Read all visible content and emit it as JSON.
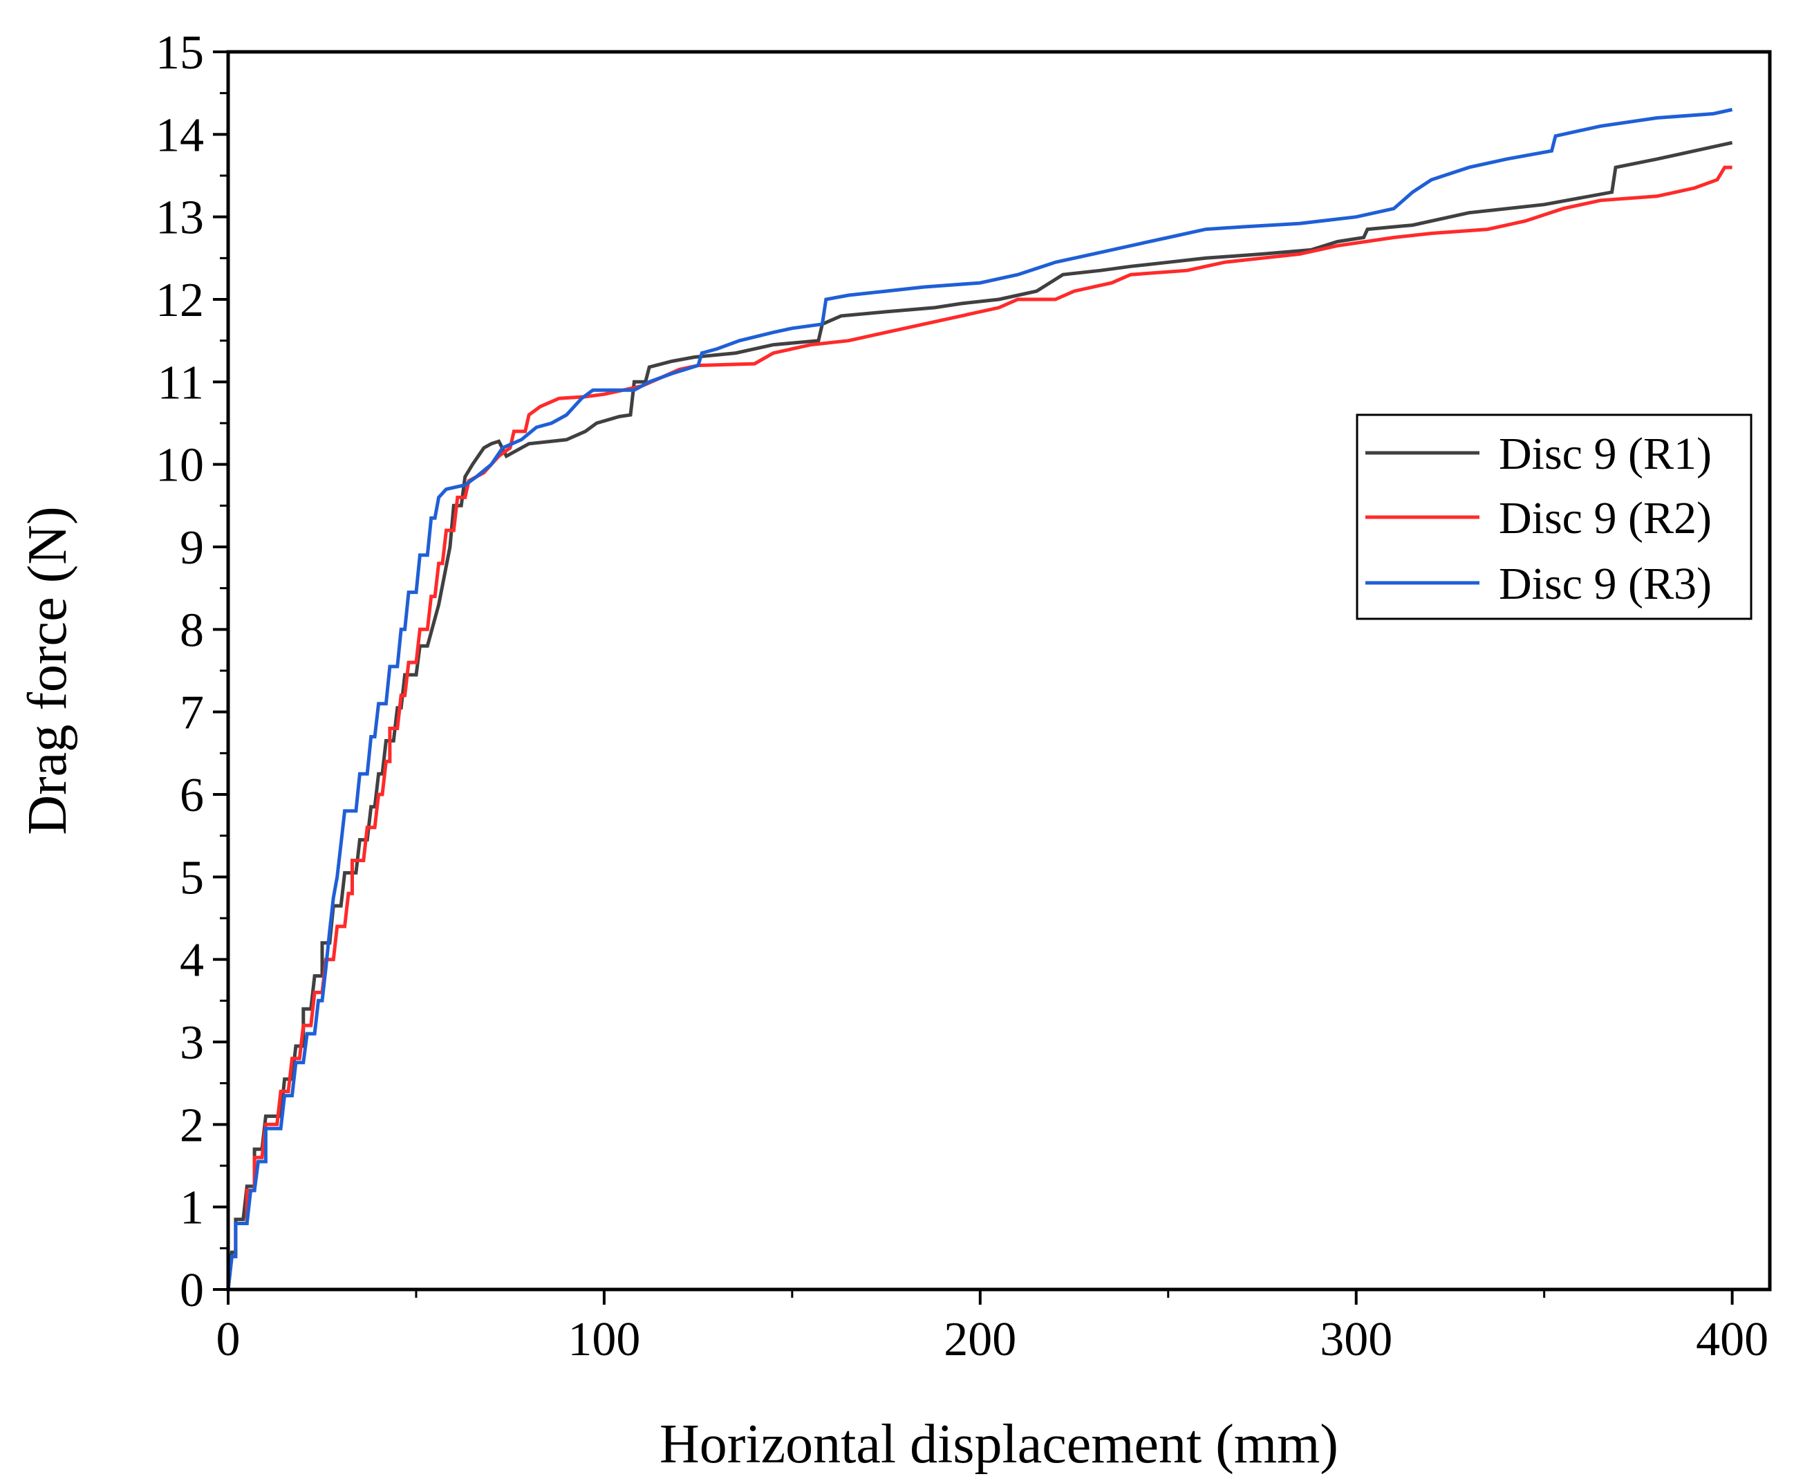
{
  "chart_data": {
    "type": "line",
    "title": "",
    "xlabel": "Horizontal displacement (mm)",
    "ylabel": "Drag force (N)",
    "xlim": [
      0,
      410
    ],
    "ylim": [
      0,
      15
    ],
    "xticks": [
      0,
      100,
      200,
      300,
      400
    ],
    "xtick_labels": [
      "0",
      "100",
      "200",
      "300",
      "400"
    ],
    "yticks": [
      0,
      1,
      2,
      3,
      4,
      5,
      6,
      7,
      8,
      9,
      10,
      11,
      12,
      13,
      14,
      15
    ],
    "ytick_labels": [
      "0",
      "1",
      "2",
      "3",
      "4",
      "5",
      "6",
      "7",
      "8",
      "9",
      "10",
      "11",
      "12",
      "13",
      "14",
      "15"
    ],
    "grid": false,
    "legend_position": "right-middle",
    "series": [
      {
        "name": "Disc 9 (R1)",
        "color": "#404040",
        "points": [
          [
            0,
            0
          ],
          [
            1,
            0.45
          ],
          [
            2,
            0.45
          ],
          [
            2,
            0.85
          ],
          [
            4,
            0.85
          ],
          [
            5,
            1.25
          ],
          [
            7,
            1.25
          ],
          [
            7,
            1.7
          ],
          [
            9,
            1.7
          ],
          [
            10,
            2.1
          ],
          [
            14,
            2.1
          ],
          [
            15,
            2.55
          ],
          [
            17,
            2.55
          ],
          [
            18,
            2.95
          ],
          [
            20,
            2.95
          ],
          [
            20,
            3.4
          ],
          [
            22,
            3.4
          ],
          [
            23,
            3.8
          ],
          [
            25,
            3.8
          ],
          [
            25,
            4.2
          ],
          [
            27,
            4.2
          ],
          [
            28,
            4.65
          ],
          [
            30,
            4.65
          ],
          [
            31,
            5.05
          ],
          [
            34,
            5.05
          ],
          [
            35,
            5.45
          ],
          [
            37,
            5.45
          ],
          [
            38,
            5.85
          ],
          [
            39,
            5.85
          ],
          [
            40,
            6.25
          ],
          [
            41,
            6.25
          ],
          [
            42,
            6.65
          ],
          [
            44,
            6.65
          ],
          [
            45,
            7.05
          ],
          [
            46,
            7.05
          ],
          [
            47,
            7.45
          ],
          [
            50,
            7.45
          ],
          [
            51,
            7.8
          ],
          [
            53,
            7.8
          ],
          [
            56,
            8.3
          ],
          [
            59,
            9.0
          ],
          [
            60,
            9.5
          ],
          [
            62,
            9.5
          ],
          [
            63,
            9.85
          ],
          [
            65,
            10.0
          ],
          [
            68,
            10.2
          ],
          [
            70,
            10.25
          ],
          [
            72,
            10.28
          ],
          [
            74,
            10.1
          ],
          [
            80,
            10.25
          ],
          [
            90,
            10.3
          ],
          [
            95,
            10.4
          ],
          [
            98,
            10.5
          ],
          [
            104,
            10.58
          ],
          [
            107,
            10.6
          ],
          [
            108,
            11.0
          ],
          [
            111,
            11.0
          ],
          [
            112,
            11.18
          ],
          [
            118,
            11.25
          ],
          [
            124,
            11.3
          ],
          [
            135,
            11.35
          ],
          [
            145,
            11.45
          ],
          [
            157,
            11.5
          ],
          [
            158,
            11.7
          ],
          [
            163,
            11.8
          ],
          [
            175,
            11.85
          ],
          [
            188,
            11.9
          ],
          [
            195,
            11.95
          ],
          [
            205,
            12.0
          ],
          [
            215,
            12.1
          ],
          [
            222,
            12.3
          ],
          [
            232,
            12.35
          ],
          [
            240,
            12.4
          ],
          [
            250,
            12.45
          ],
          [
            260,
            12.5
          ],
          [
            275,
            12.55
          ],
          [
            288,
            12.6
          ],
          [
            295,
            12.7
          ],
          [
            302,
            12.75
          ],
          [
            303,
            12.85
          ],
          [
            315,
            12.9
          ],
          [
            330,
            13.05
          ],
          [
            350,
            13.15
          ],
          [
            368,
            13.3
          ],
          [
            369,
            13.6
          ],
          [
            380,
            13.7
          ],
          [
            390,
            13.8
          ],
          [
            400,
            13.9
          ]
        ]
      },
      {
        "name": "Disc 9 (R2)",
        "color": "#ff2a2a",
        "points": [
          [
            0,
            0
          ],
          [
            1,
            0.4
          ],
          [
            2,
            0.4
          ],
          [
            2,
            0.8
          ],
          [
            5,
            0.8
          ],
          [
            5,
            1.2
          ],
          [
            7,
            1.2
          ],
          [
            7,
            1.6
          ],
          [
            9,
            1.6
          ],
          [
            10,
            2.0
          ],
          [
            13,
            2.0
          ],
          [
            14,
            2.4
          ],
          [
            16,
            2.4
          ],
          [
            17,
            2.8
          ],
          [
            19,
            2.8
          ],
          [
            20,
            3.2
          ],
          [
            22,
            3.2
          ],
          [
            23,
            3.6
          ],
          [
            25,
            3.6
          ],
          [
            26,
            4.0
          ],
          [
            28,
            4.0
          ],
          [
            29,
            4.4
          ],
          [
            31,
            4.4
          ],
          [
            32,
            4.8
          ],
          [
            33,
            4.8
          ],
          [
            33,
            5.2
          ],
          [
            36,
            5.2
          ],
          [
            37,
            5.6
          ],
          [
            39,
            5.6
          ],
          [
            40,
            6.0
          ],
          [
            41,
            6.0
          ],
          [
            42,
            6.4
          ],
          [
            43,
            6.4
          ],
          [
            43,
            6.8
          ],
          [
            45,
            6.8
          ],
          [
            46,
            7.2
          ],
          [
            47,
            7.2
          ],
          [
            48,
            7.6
          ],
          [
            50,
            7.6
          ],
          [
            51,
            8.0
          ],
          [
            53,
            8.0
          ],
          [
            54,
            8.4
          ],
          [
            55,
            8.4
          ],
          [
            56,
            8.8
          ],
          [
            57,
            8.8
          ],
          [
            58,
            9.2
          ],
          [
            60,
            9.2
          ],
          [
            61,
            9.6
          ],
          [
            63,
            9.6
          ],
          [
            64,
            9.8
          ],
          [
            66,
            9.85
          ],
          [
            68,
            9.9
          ],
          [
            70,
            10.0
          ],
          [
            72,
            10.1
          ],
          [
            75,
            10.2
          ],
          [
            76,
            10.4
          ],
          [
            79,
            10.4
          ],
          [
            80,
            10.6
          ],
          [
            83,
            10.7
          ],
          [
            88,
            10.8
          ],
          [
            95,
            10.82
          ],
          [
            100,
            10.85
          ],
          [
            110,
            10.95
          ],
          [
            115,
            11.05
          ],
          [
            120,
            11.15
          ],
          [
            125,
            11.2
          ],
          [
            140,
            11.22
          ],
          [
            145,
            11.35
          ],
          [
            155,
            11.45
          ],
          [
            165,
            11.5
          ],
          [
            175,
            11.6
          ],
          [
            185,
            11.7
          ],
          [
            195,
            11.8
          ],
          [
            205,
            11.9
          ],
          [
            210,
            12.0
          ],
          [
            220,
            12.0
          ],
          [
            225,
            12.1
          ],
          [
            235,
            12.2
          ],
          [
            240,
            12.3
          ],
          [
            255,
            12.35
          ],
          [
            265,
            12.45
          ],
          [
            275,
            12.5
          ],
          [
            285,
            12.55
          ],
          [
            295,
            12.65
          ],
          [
            310,
            12.75
          ],
          [
            320,
            12.8
          ],
          [
            335,
            12.85
          ],
          [
            345,
            12.95
          ],
          [
            355,
            13.1
          ],
          [
            365,
            13.2
          ],
          [
            380,
            13.25
          ],
          [
            390,
            13.35
          ],
          [
            396,
            13.45
          ],
          [
            398,
            13.6
          ],
          [
            400,
            13.6
          ]
        ]
      },
      {
        "name": "Disc 9 (R3)",
        "color": "#1f5fd6",
        "points": [
          [
            0,
            0
          ],
          [
            1,
            0.4
          ],
          [
            2,
            0.4
          ],
          [
            2,
            0.8
          ],
          [
            5,
            0.8
          ],
          [
            6,
            1.2
          ],
          [
            7,
            1.2
          ],
          [
            8,
            1.55
          ],
          [
            10,
            1.55
          ],
          [
            10,
            1.95
          ],
          [
            14,
            1.95
          ],
          [
            15,
            2.35
          ],
          [
            17,
            2.35
          ],
          [
            18,
            2.75
          ],
          [
            20,
            2.75
          ],
          [
            21,
            3.1
          ],
          [
            23,
            3.1
          ],
          [
            24,
            3.5
          ],
          [
            25,
            3.5
          ],
          [
            26,
            3.9
          ],
          [
            27,
            4.35
          ],
          [
            28,
            4.75
          ],
          [
            29,
            5.0
          ],
          [
            30,
            5.4
          ],
          [
            31,
            5.8
          ],
          [
            34,
            5.8
          ],
          [
            35,
            6.25
          ],
          [
            37,
            6.25
          ],
          [
            38,
            6.7
          ],
          [
            39,
            6.7
          ],
          [
            40,
            7.1
          ],
          [
            42,
            7.1
          ],
          [
            43,
            7.55
          ],
          [
            45,
            7.55
          ],
          [
            46,
            8.0
          ],
          [
            47,
            8.0
          ],
          [
            48,
            8.45
          ],
          [
            50,
            8.45
          ],
          [
            51,
            8.9
          ],
          [
            53,
            8.9
          ],
          [
            54,
            9.35
          ],
          [
            55,
            9.35
          ],
          [
            56,
            9.6
          ],
          [
            58,
            9.7
          ],
          [
            63,
            9.75
          ],
          [
            66,
            9.85
          ],
          [
            70,
            10.0
          ],
          [
            73,
            10.2
          ],
          [
            78,
            10.3
          ],
          [
            82,
            10.45
          ],
          [
            86,
            10.5
          ],
          [
            90,
            10.6
          ],
          [
            94,
            10.8
          ],
          [
            97,
            10.9
          ],
          [
            100,
            10.9
          ],
          [
            108,
            10.9
          ],
          [
            112,
            11.0
          ],
          [
            118,
            11.1
          ],
          [
            125,
            11.2
          ],
          [
            126,
            11.35
          ],
          [
            130,
            11.4
          ],
          [
            136,
            11.5
          ],
          [
            145,
            11.6
          ],
          [
            150,
            11.65
          ],
          [
            158,
            11.7
          ],
          [
            159,
            12.0
          ],
          [
            165,
            12.05
          ],
          [
            175,
            12.1
          ],
          [
            185,
            12.15
          ],
          [
            200,
            12.2
          ],
          [
            210,
            12.3
          ],
          [
            220,
            12.45
          ],
          [
            230,
            12.55
          ],
          [
            240,
            12.65
          ],
          [
            250,
            12.75
          ],
          [
            260,
            12.85
          ],
          [
            270,
            12.88
          ],
          [
            285,
            12.92
          ],
          [
            300,
            13.0
          ],
          [
            310,
            13.1
          ],
          [
            315,
            13.3
          ],
          [
            320,
            13.45
          ],
          [
            330,
            13.6
          ],
          [
            340,
            13.7
          ],
          [
            352,
            13.8
          ],
          [
            353,
            13.98
          ],
          [
            365,
            14.1
          ],
          [
            380,
            14.2
          ],
          [
            395,
            14.25
          ],
          [
            400,
            14.3
          ]
        ]
      }
    ]
  }
}
